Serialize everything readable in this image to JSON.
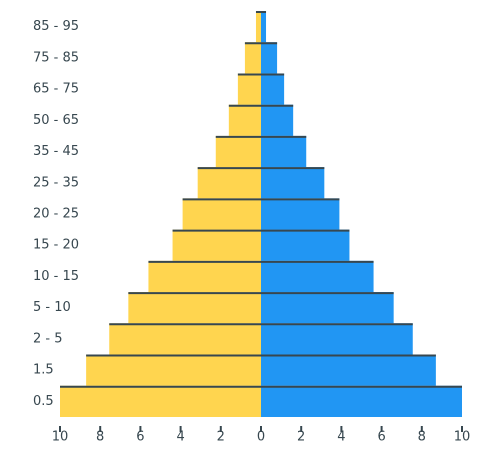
{
  "chart_data": {
    "type": "pyramid",
    "categories": [
      "85 - 95",
      "75 - 85",
      "65 - 75",
      "50 - 65",
      "35 - 45",
      "25 - 35",
      "20 - 25",
      "15 - 20",
      "10 - 15",
      "5 - 10",
      "2 - 5",
      "1.5",
      "0.5"
    ],
    "series": [
      {
        "color": "#ffd54f",
        "side": "left",
        "values": [
          0.25,
          0.8,
          1.15,
          1.6,
          2.25,
          3.15,
          3.9,
          4.4,
          5.6,
          6.6,
          7.55,
          8.7,
          10
        ]
      },
      {
        "color": "#2196f3",
        "side": "right",
        "values": [
          0.25,
          0.8,
          1.15,
          1.6,
          2.25,
          3.15,
          3.9,
          4.4,
          5.6,
          6.6,
          7.55,
          8.7,
          10
        ]
      }
    ],
    "xlim": [
      -10,
      10
    ],
    "xticks": [
      {
        "value": -10,
        "label": "10"
      },
      {
        "value": -8,
        "label": "8"
      },
      {
        "value": -6,
        "label": "6"
      },
      {
        "value": -4,
        "label": "4"
      },
      {
        "value": -2,
        "label": "2"
      },
      0,
      2,
      4,
      6,
      8,
      10
    ]
  }
}
